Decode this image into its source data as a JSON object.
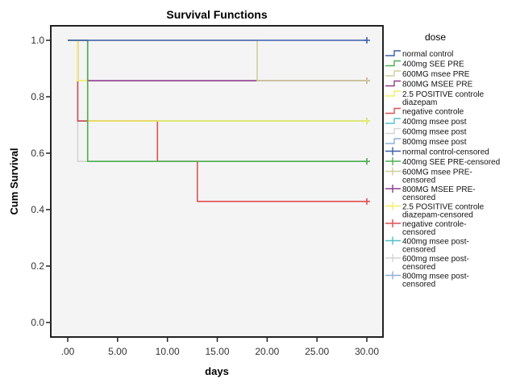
{
  "chart_data": {
    "type": "line",
    "title": "Survival Functions",
    "xlabel": "days",
    "ylabel": "Cum Survival",
    "xlim": [
      -1.7,
      31.5
    ],
    "ylim": [
      -0.05,
      1.05
    ],
    "x_ticks": [
      0,
      5,
      10,
      15,
      20,
      25,
      30
    ],
    "x_tick_labels": [
      ".00",
      "5.00",
      "10.00",
      "15.00",
      "20.00",
      "25.00",
      "30.00"
    ],
    "y_ticks": [
      0,
      0.2,
      0.4,
      0.6,
      0.8,
      1.0
    ],
    "y_tick_labels": [
      "0.0",
      "0.2",
      "0.4",
      "0.6",
      "0.8",
      "1.0"
    ],
    "grid": false,
    "legend_title": "dose",
    "legend_position": "right",
    "series": [
      {
        "name": "normal control",
        "color": "#3a5fb0",
        "steps": [
          [
            0,
            1.0
          ],
          [
            30,
            1.0
          ]
        ],
        "censored": [
          [
            30,
            1.0
          ]
        ]
      },
      {
        "name": "400mg SEE PRE",
        "color": "#4caf50",
        "steps": [
          [
            0,
            1.0
          ],
          [
            2,
            0.571
          ],
          [
            30,
            0.571
          ]
        ],
        "censored": [
          [
            30,
            0.571
          ]
        ]
      },
      {
        "name": "600MG msee PRE",
        "color": "#cfcf9a",
        "steps": [
          [
            0,
            1.0
          ],
          [
            19,
            0.857
          ],
          [
            30,
            0.857
          ]
        ],
        "censored": [
          [
            30,
            0.857
          ]
        ]
      },
      {
        "name": "800MG MSEE PRE",
        "color": "#8e3b8e",
        "steps": [
          [
            0,
            1.0
          ],
          [
            2,
            0.857
          ],
          [
            30,
            0.857
          ]
        ],
        "censored": [
          [
            30,
            0.857
          ]
        ]
      },
      {
        "name": "2.5 POSITIVE controle diazepam",
        "color": "#f2f060",
        "steps": [
          [
            0,
            1.0
          ],
          [
            1,
            0.857
          ],
          [
            2,
            0.714
          ],
          [
            30,
            0.714
          ]
        ],
        "censored": [
          [
            30,
            0.714
          ]
        ]
      },
      {
        "name": "negative controle",
        "color": "#e05050",
        "steps": [
          [
            0,
            1.0
          ],
          [
            1,
            0.714
          ],
          [
            9,
            0.571
          ],
          [
            13,
            0.429
          ],
          [
            30,
            0.429
          ]
        ],
        "censored": [
          [
            30,
            0.429
          ]
        ]
      },
      {
        "name": "400mg msee post",
        "color": "#50c0c8",
        "steps": [
          [
            0,
            1.0
          ],
          [
            1,
            0.714
          ],
          [
            30,
            0.714
          ]
        ],
        "censored": [
          [
            30,
            0.714
          ]
        ]
      },
      {
        "name": "600mg msee post",
        "color": "#d4d4d4",
        "steps": [
          [
            0,
            1.0
          ],
          [
            1,
            0.571
          ],
          [
            30,
            0.571
          ]
        ],
        "censored": [
          [
            30,
            0.571
          ]
        ]
      },
      {
        "name": "800mg msee post",
        "color": "#8fb0d8",
        "steps": [
          [
            0,
            1.0
          ],
          [
            1,
            0.714
          ],
          [
            30,
            0.714
          ]
        ],
        "censored": [
          [
            30,
            0.714
          ]
        ]
      }
    ],
    "legend_entries": [
      {
        "label": [
          "normal control"
        ],
        "color": "#3a5fb0",
        "kind": "step"
      },
      {
        "label": [
          "400mg SEE PRE"
        ],
        "color": "#4caf50",
        "kind": "step"
      },
      {
        "label": [
          "600MG msee PRE"
        ],
        "color": "#cfcf9a",
        "kind": "step"
      },
      {
        "label": [
          "800MG MSEE PRE"
        ],
        "color": "#8e3b8e",
        "kind": "step"
      },
      {
        "label": [
          "2.5 POSITIVE controle",
          "diazepam"
        ],
        "color": "#f2f060",
        "kind": "step"
      },
      {
        "label": [
          "negative controle"
        ],
        "color": "#e05050",
        "kind": "step"
      },
      {
        "label": [
          "400mg msee post"
        ],
        "color": "#50c0c8",
        "kind": "step"
      },
      {
        "label": [
          "600mg msee post"
        ],
        "color": "#d4d4d4",
        "kind": "step"
      },
      {
        "label": [
          "800mg msee post"
        ],
        "color": "#8fb0d8",
        "kind": "step"
      },
      {
        "label": [
          "normal control-censored"
        ],
        "color": "#3a5fb0",
        "kind": "cross"
      },
      {
        "label": [
          "400mg SEE PRE-censored"
        ],
        "color": "#4caf50",
        "kind": "cross"
      },
      {
        "label": [
          "600MG msee PRE-",
          "censored"
        ],
        "color": "#cfcf9a",
        "kind": "cross"
      },
      {
        "label": [
          "800MG MSEE PRE-",
          "censored"
        ],
        "color": "#8e3b8e",
        "kind": "cross"
      },
      {
        "label": [
          "2.5 POSITIVE controle",
          "diazepam-censored"
        ],
        "color": "#f2f060",
        "kind": "cross"
      },
      {
        "label": [
          "negative controle-",
          "censored"
        ],
        "color": "#e05050",
        "kind": "cross"
      },
      {
        "label": [
          "400mg msee post-",
          "censored"
        ],
        "color": "#50c0c8",
        "kind": "cross"
      },
      {
        "label": [
          "600mg msee post-",
          "censored"
        ],
        "color": "#d4d4d4",
        "kind": "cross"
      },
      {
        "label": [
          "800mg msee post-",
          "censored"
        ],
        "color": "#8fb0d8",
        "kind": "cross"
      }
    ]
  }
}
